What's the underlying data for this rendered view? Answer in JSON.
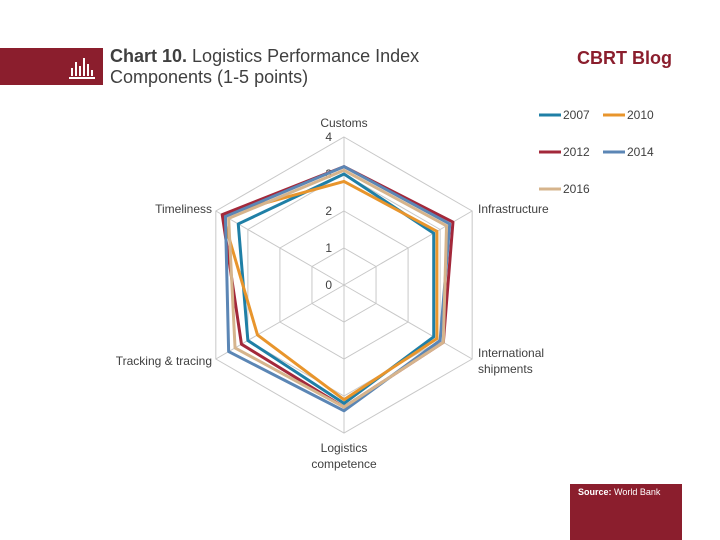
{
  "header": {
    "title_number": "Chart 10.",
    "title_rest": "Logistics Performance Index",
    "title_line2": "Components (1-5 points)",
    "brand": "CBRT Blog",
    "icon": "bar-chart-icon",
    "accent_color": "#8b1e2d"
  },
  "source": {
    "label": "Source:",
    "value": "World Bank"
  },
  "chart_data": {
    "type": "radar",
    "title": "Logistics Performance Index Components (1-5 points)",
    "categories": [
      "Customs",
      "Infrastructure",
      "International shipments",
      "Logistics competence",
      "Tracking & tracing",
      "Timeliness"
    ],
    "category_lines": [
      [
        "Customs"
      ],
      [
        "Infrastructure"
      ],
      [
        "International",
        "shipments"
      ],
      [
        "Logistics",
        "competence"
      ],
      [
        "Tracking & tracing"
      ],
      [
        "Timeliness"
      ]
    ],
    "rlim": [
      0,
      4
    ],
    "ticks": [
      0,
      1,
      2,
      3,
      4
    ],
    "grid": true,
    "legend_position": "top-right",
    "series": [
      {
        "name": "2007",
        "color": "#1f7fa6",
        "values": [
          3.0,
          2.8,
          2.8,
          3.2,
          3.0,
          3.3
        ]
      },
      {
        "name": "2010",
        "color": "#e8952c",
        "values": [
          2.8,
          2.9,
          2.9,
          3.1,
          2.7,
          3.8
        ]
      },
      {
        "name": "2012",
        "color": "#a3283a",
        "values": [
          3.2,
          3.4,
          3.1,
          3.3,
          3.2,
          3.8
        ]
      },
      {
        "name": "2014",
        "color": "#5b86b5",
        "values": [
          3.2,
          3.3,
          3.0,
          3.4,
          3.6,
          3.7
        ]
      },
      {
        "name": "2016",
        "color": "#d6b48c",
        "values": [
          3.1,
          3.2,
          3.1,
          3.3,
          3.4,
          3.6
        ]
      }
    ]
  }
}
